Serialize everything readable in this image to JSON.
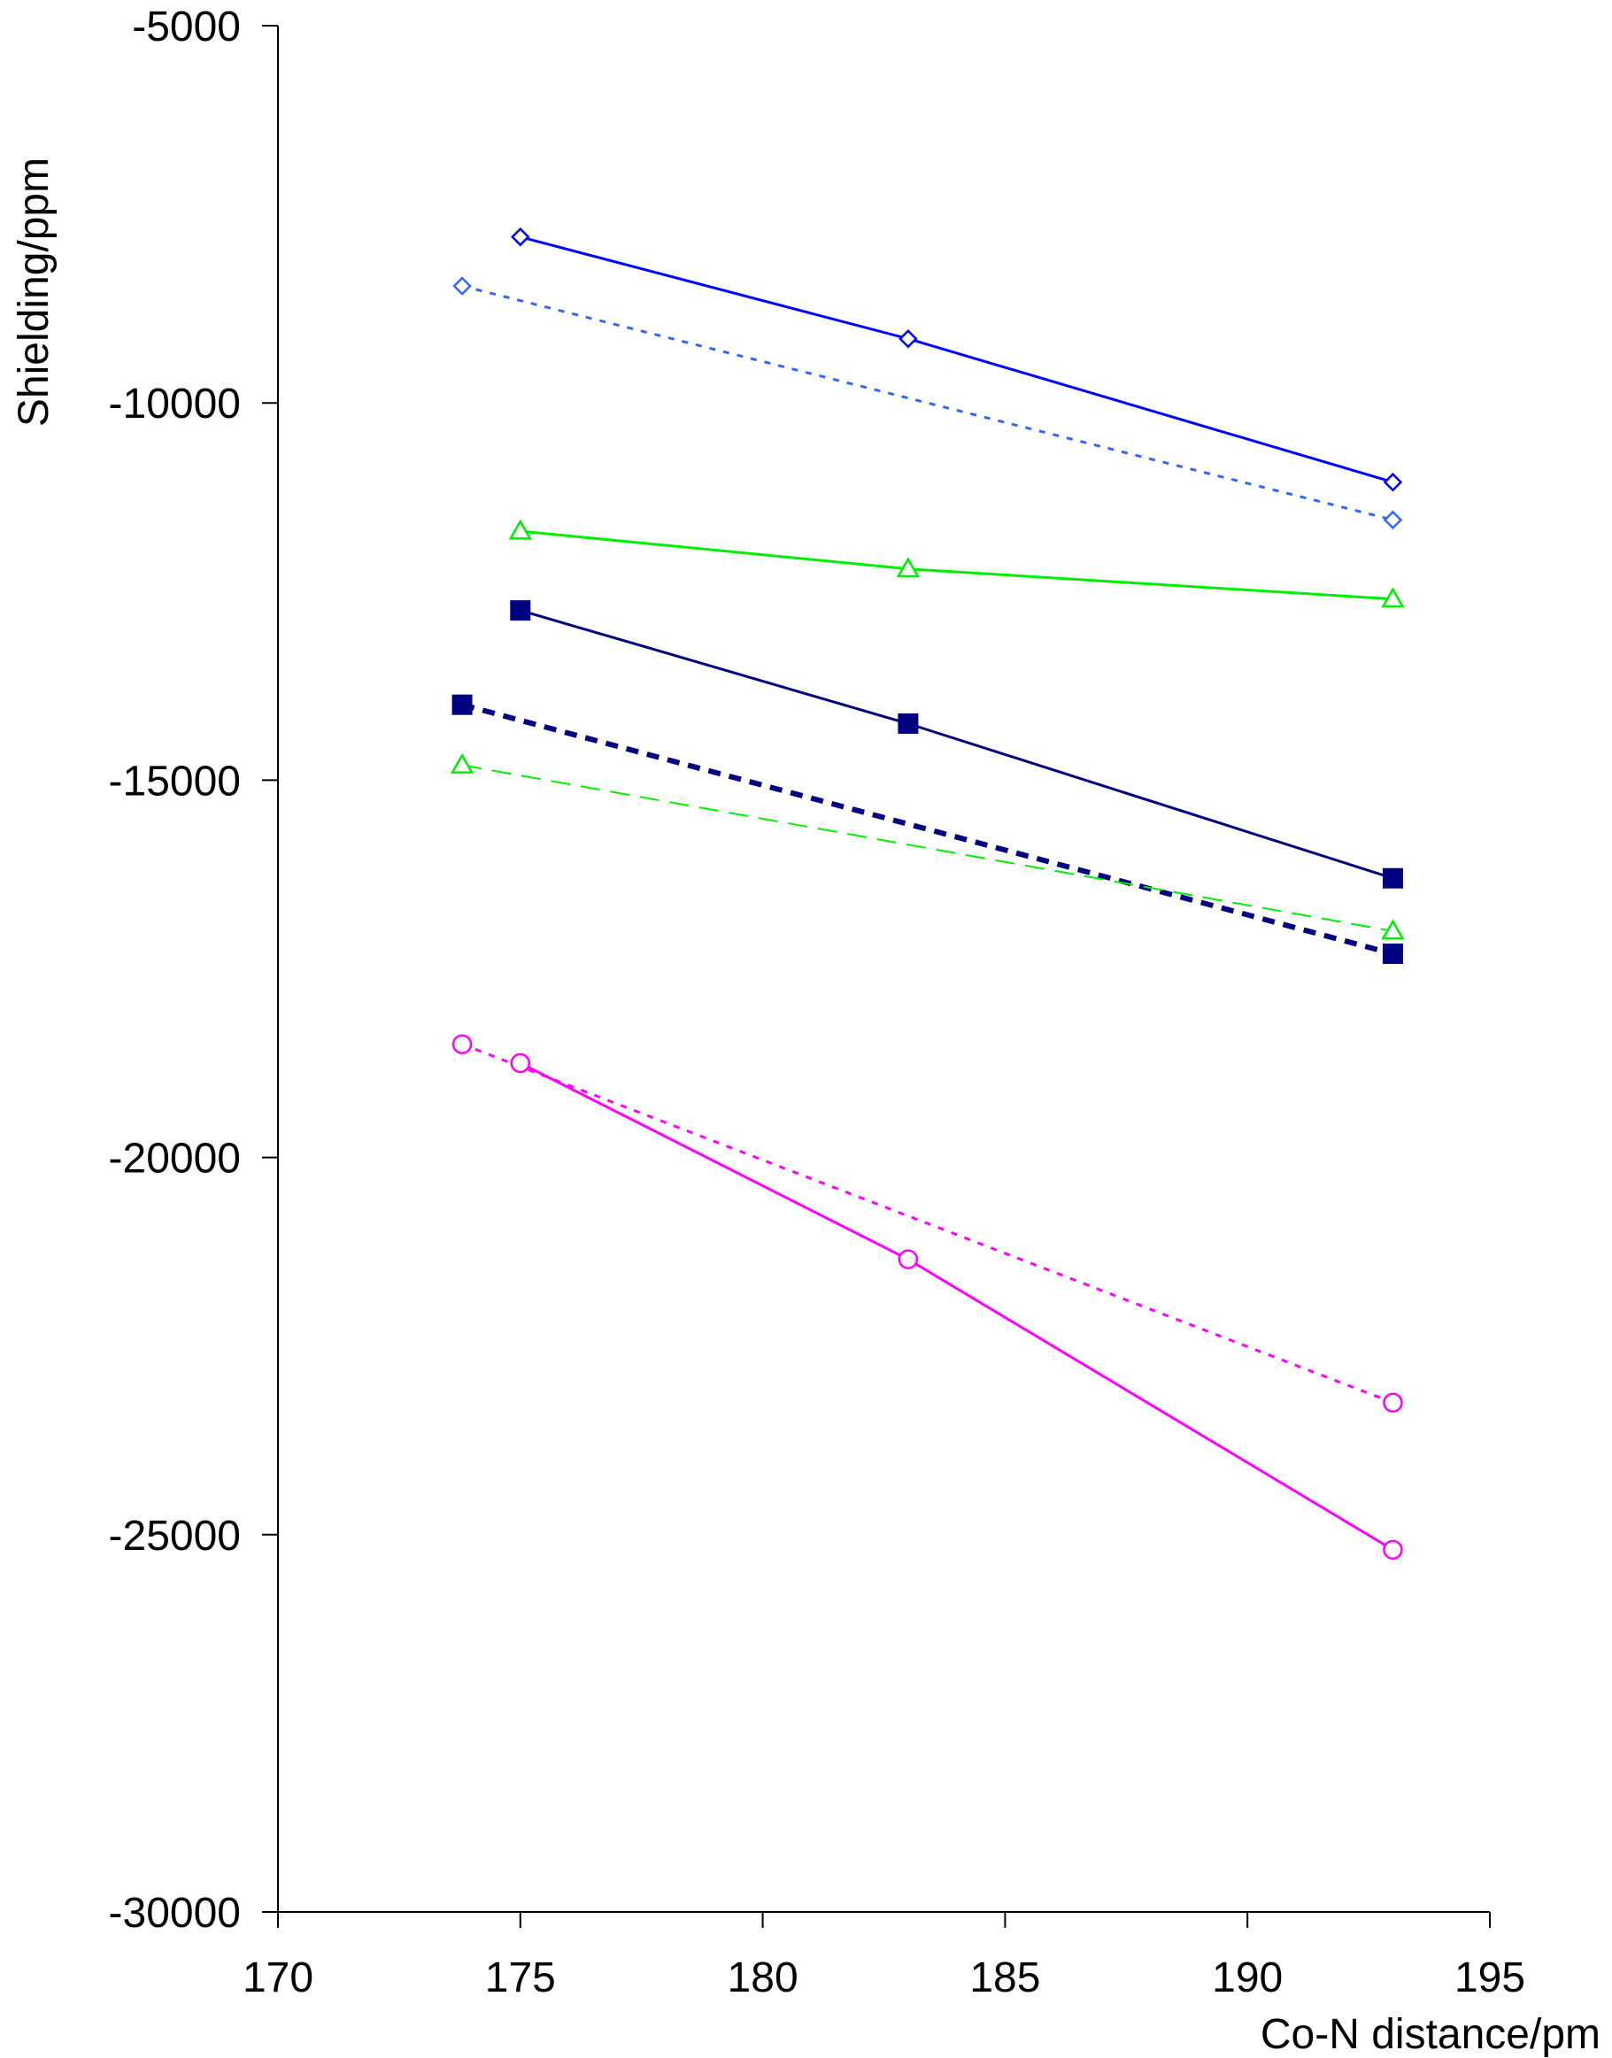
{
  "chart_data": {
    "type": "line",
    "title": "",
    "xlabel": "Co-N distance/pm",
    "ylabel": "Shielding/ppm",
    "xlim": [
      170,
      195
    ],
    "ylim": [
      -30000,
      -5000
    ],
    "x_ticks": [
      170,
      175,
      180,
      185,
      190,
      195
    ],
    "y_ticks": [
      -5000,
      -10000,
      -15000,
      -20000,
      -25000,
      -30000
    ],
    "x_tick_labels": [
      "170",
      "175",
      "180",
      "185",
      "190",
      "195"
    ],
    "y_tick_labels": [
      "-5000",
      "-10000",
      "-15000",
      "-20000",
      "-25000",
      "-30000"
    ],
    "grid": false,
    "legend": "none",
    "series": [
      {
        "color": "#0000ff",
        "line_style": "solid",
        "marker": "diamond-open",
        "points": [
          [
            175,
            -7800
          ],
          [
            183,
            -9150
          ],
          [
            193,
            -11050
          ]
        ]
      },
      {
        "color": "#3366ff",
        "line_style": "dotted",
        "marker": "diamond-open",
        "points": [
          [
            173.8,
            -8450
          ],
          [
            193,
            -11550
          ]
        ]
      },
      {
        "color": "#00ee00",
        "line_style": "solid",
        "marker": "triangle-open",
        "points": [
          [
            175,
            -11700
          ],
          [
            183,
            -12200
          ],
          [
            193,
            -12600
          ]
        ]
      },
      {
        "color": "#000080",
        "line_style": "solid",
        "marker": "square-filled",
        "points": [
          [
            175,
            -12750
          ],
          [
            183,
            -14250
          ],
          [
            193,
            -16300
          ]
        ]
      },
      {
        "color": "#000080",
        "line_style": "dashed-bold",
        "marker": "square-filled",
        "points": [
          [
            173.8,
            -14000
          ],
          [
            193,
            -17300
          ]
        ]
      },
      {
        "color": "#00ee00",
        "line_style": "dashed",
        "marker": "triangle-open",
        "points": [
          [
            173.8,
            -14800
          ],
          [
            193,
            -17000
          ]
        ]
      },
      {
        "color": "#ff00ff",
        "line_style": "solid",
        "marker": "circle-open",
        "points": [
          [
            175,
            -18750
          ],
          [
            183,
            -21350
          ],
          [
            193,
            -25200
          ]
        ]
      },
      {
        "color": "#ff00ff",
        "line_style": "dotted",
        "marker": "circle-open",
        "points": [
          [
            173.8,
            -18500
          ],
          [
            193,
            -23250
          ]
        ]
      }
    ]
  }
}
